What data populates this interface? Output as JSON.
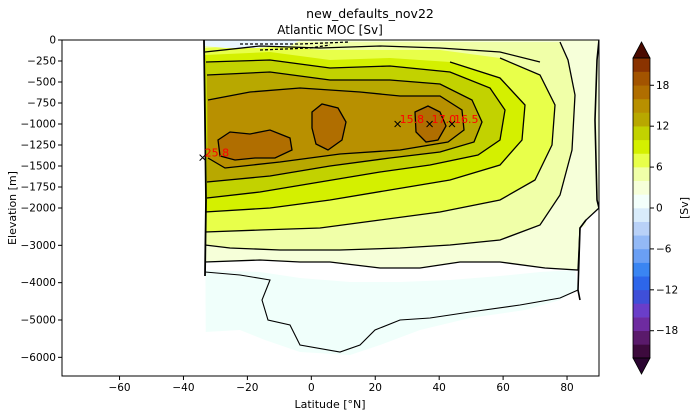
{
  "suptitle": "new_defaults_nov22",
  "chart_data": {
    "type": "contour",
    "title": "Atlantic MOC [Sv]",
    "xlabel": "Latitude [°N]",
    "ylabel": "Elevation [m]",
    "colorbar_label": "[Sv]",
    "xlim": [
      -78,
      90
    ],
    "x_ticks": [
      -60,
      -40,
      -20,
      0,
      20,
      40,
      60,
      80
    ],
    "y_ticks_upper": [
      0,
      -250,
      -500,
      -750,
      -1000,
      -1250,
      -1500,
      -1750,
      -2000
    ],
    "y_ticks_lower": [
      -2000,
      -3000,
      -4000,
      -5000,
      -6000
    ],
    "ylim": [
      -6500,
      0
    ],
    "colorbar_ticks": [
      18,
      12,
      6,
      0,
      -6,
      -12,
      -18
    ],
    "colorbar_range": [
      -22,
      22
    ],
    "colorbar_levels": [
      -22,
      -20,
      -18,
      -16,
      -14,
      -12,
      -10,
      -8,
      -6,
      -4,
      -2,
      0,
      2,
      4,
      6,
      8,
      10,
      12,
      14,
      16,
      18,
      20,
      22
    ],
    "colorbar_colors": [
      "#3d0a3d",
      "#5a1a6b",
      "#6e2ba0",
      "#6a3ec9",
      "#3f4fd8",
      "#2d66ea",
      "#3a85f2",
      "#6a9ff4",
      "#93b9f6",
      "#b9d1f7",
      "#d9ecfb",
      "#f3fffb",
      "#f6ffd9",
      "#f0ffa8",
      "#e8ff4a",
      "#d4f000",
      "#c2d200",
      "#b8a800",
      "#b89000",
      "#b06e00",
      "#a35400",
      "#8a3300",
      "#6e1400"
    ],
    "colorbar_extend_colors": [
      "#2a0430",
      "#4a0a00"
    ],
    "annotations": [
      {
        "label": "25.8",
        "x": -34,
        "y": -1400
      },
      {
        "label": "15.8",
        "x": 27,
        "y": -1000
      },
      {
        "label": "17.0",
        "x": 37,
        "y": -1000
      },
      {
        "label": "16.5",
        "x": 44,
        "y": -1000
      }
    ],
    "annotation_color": "#ff0000"
  }
}
